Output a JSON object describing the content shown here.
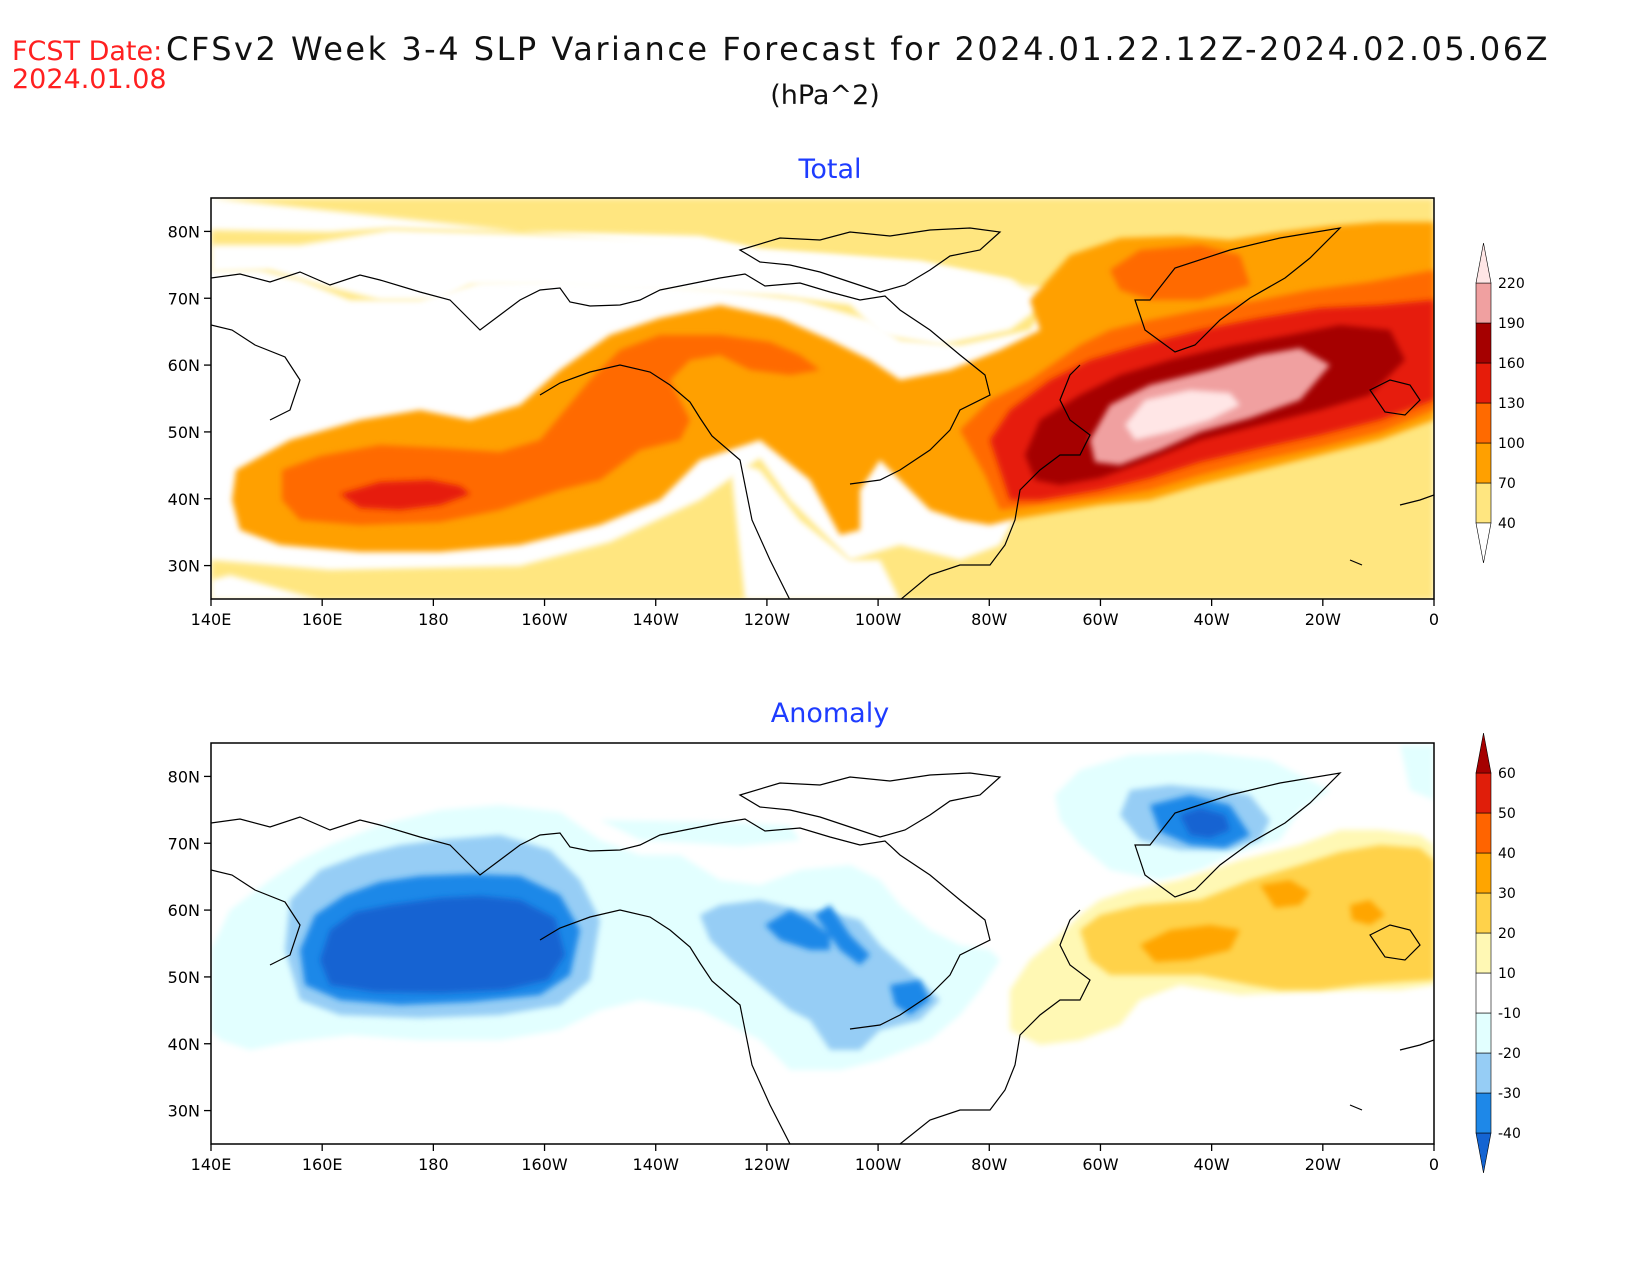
{
  "header": {
    "fcst_label": "FCST Date:",
    "fcst_date": "2024.01.08",
    "title": "CFSv2 Week 3-4 SLP Variance Forecast for 2024.01.22.12Z-2024.02.05.06Z",
    "units": "(hPa^2)"
  },
  "panels": [
    {
      "title": "Total",
      "lon_labels": [
        "140E",
        "160E",
        "180",
        "160W",
        "140W",
        "120W",
        "100W",
        "80W",
        "60W",
        "40W",
        "20W",
        "0"
      ],
      "lat_labels": [
        "30N",
        "40N",
        "50N",
        "60N",
        "70N",
        "80N"
      ],
      "colorbar": {
        "levels": [
          "40",
          "70",
          "100",
          "130",
          "160",
          "190",
          "220"
        ],
        "colors": [
          "#ffe680",
          "#ffa000",
          "#ff6a00",
          "#e61c0a",
          "#a50000",
          "#f0a0a0",
          "#ffe6e6"
        ]
      }
    },
    {
      "title": "Anomaly",
      "lon_labels": [
        "140E",
        "160E",
        "180",
        "160W",
        "140W",
        "120W",
        "100W",
        "80W",
        "60W",
        "40W",
        "20W",
        "0"
      ],
      "lat_labels": [
        "30N",
        "40N",
        "50N",
        "60N",
        "70N",
        "80N"
      ],
      "colorbar": {
        "levels": [
          "-40",
          "-30",
          "-20",
          "-10",
          "10",
          "20",
          "30",
          "40",
          "50",
          "60"
        ],
        "colors": [
          "#1464d2",
          "#1e88e8",
          "#96cdf5",
          "#e2ffff",
          "#ffffff",
          "#fff8b4",
          "#ffd24a",
          "#ffa500",
          "#ff6400",
          "#e01e0a",
          "#a50000"
        ]
      }
    }
  ],
  "colors": {
    "title_blue": "#1e3cff",
    "fcst_red": "#ff2020"
  }
}
